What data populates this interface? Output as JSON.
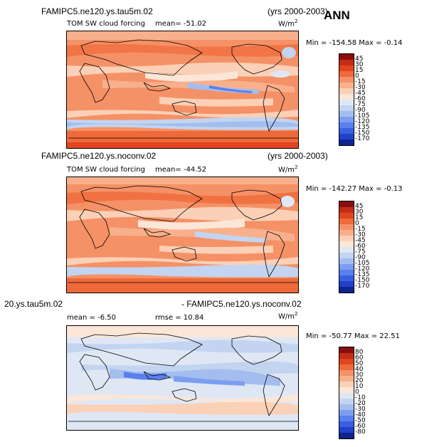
{
  "header": {
    "annual_label": "ANN"
  },
  "panels": [
    {
      "case_title": "FAMIPC5.ne120.ys.tau5m.02",
      "years": "(yrs 2000-2003)",
      "field_title": "TOM SW cloud forcing",
      "mean_text": "mean=  -51.02",
      "units_base": "W/m",
      "units_exp": "2",
      "minmax_text": "Min = -154.58  Max =  -0.14",
      "colorbar": {
        "labels": [
          "45",
          "30",
          "15",
          "0",
          "-15",
          "-30",
          "-45",
          "-60",
          "-75",
          "-90",
          "-105",
          "-120",
          "-135",
          "-150",
          "-170"
        ],
        "colors": [
          "#8a0d0d",
          "#c42c1a",
          "#e0451f",
          "#ef6a3a",
          "#f59166",
          "#f8b08c",
          "#fad0b6",
          "#fce6d8",
          "#dfe7f4",
          "#c2d4f0",
          "#a2bdee",
          "#7b9ef0",
          "#5a7fee",
          "#3b5fe2",
          "#2141c8",
          "#11238e"
        ]
      }
    },
    {
      "case_title": "FAMIPC5.ne120.ys.noconv.02",
      "years": "(yrs 2000-2003)",
      "field_title": "TOM SW cloud forcing",
      "mean_text": "mean=  -44.52",
      "units_base": "W/m",
      "units_exp": "2",
      "minmax_text": "Min = -142.27  Max =  -0.13",
      "colorbar": {
        "labels": [
          "45",
          "30",
          "15",
          "0",
          "-15",
          "-30",
          "-45",
          "-60",
          "-75",
          "-90",
          "-105",
          "-120",
          "-135",
          "-150",
          "-170"
        ],
        "colors": [
          "#8a0d0d",
          "#c42c1a",
          "#e0451f",
          "#ef6a3a",
          "#f59166",
          "#f8b08c",
          "#fad0b6",
          "#fce6d8",
          "#dfe7f4",
          "#c2d4f0",
          "#a2bdee",
          "#7b9ef0",
          "#5a7fee",
          "#3b5fe2",
          "#2141c8",
          "#11238e"
        ]
      }
    },
    {
      "case_title_left": "20.ys.tau5m.02",
      "case_title_right": "- FAMIPC5.ne120.ys.noconv.02",
      "mean_text": "mean =   -6.50",
      "rmse_text": "rmse =  10.84",
      "units_base": "W/m",
      "units_exp": "2",
      "minmax_text": "Min = -50.77  Max =  22.51",
      "colorbar": {
        "labels": [
          "80",
          "60",
          "50",
          "40",
          "30",
          "20",
          "10",
          "0",
          "-10",
          "-20",
          "-30",
          "-40",
          "-50",
          "-60",
          "-80"
        ],
        "colors": [
          "#8a0d0d",
          "#c42c1a",
          "#e0451f",
          "#ef6a3a",
          "#f59166",
          "#f8b08c",
          "#fad0b6",
          "#fce6d8",
          "#dfe7f4",
          "#c2d4f0",
          "#a2bdee",
          "#7b9ef0",
          "#5a7fee",
          "#3b5fe2",
          "#2141c8",
          "#11238e"
        ]
      }
    }
  ]
}
